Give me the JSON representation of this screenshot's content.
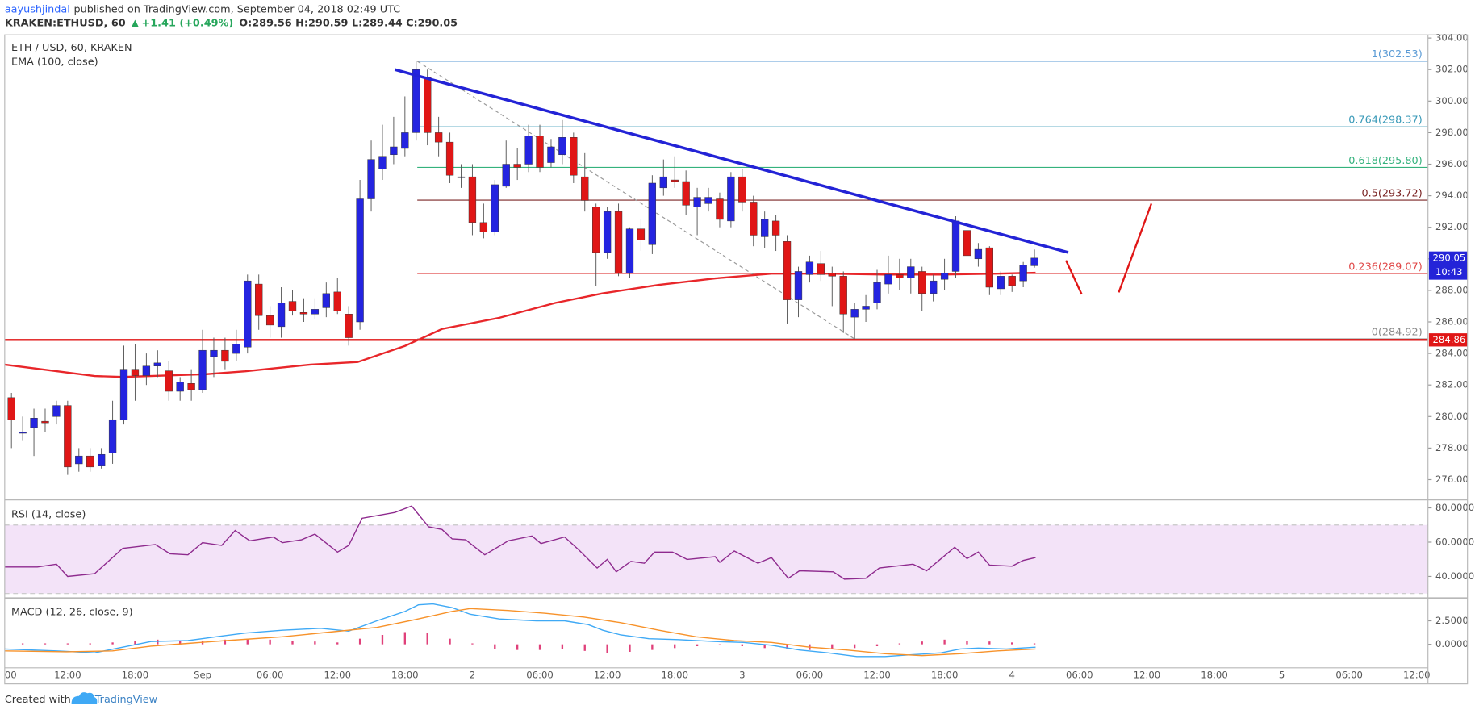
{
  "header": {
    "author": "aayushjindal",
    "published": "published on TradingView.com, September 04, 2018 02:49 UTC",
    "symbol": "KRAKEN:ETHUSD, 60",
    "change": "+1.41 (+0.49%)",
    "ohlc": "O:289.56 H:290.59 L:289.44 C:290.05"
  },
  "chart_data": [
    {
      "type": "candlestick",
      "title": "ETH / USD, 60, KRAKEN",
      "up_color": "#2424e0",
      "down_color": "#e01616",
      "grid": true,
      "x": [
        7,
        8,
        9,
        10,
        11,
        12,
        13,
        14,
        15,
        16,
        17,
        18,
        19,
        20,
        21,
        22,
        23,
        24,
        25,
        26,
        27,
        28,
        29,
        30,
        31,
        32,
        33,
        34,
        35,
        36,
        37,
        38,
        39,
        40,
        41,
        42,
        43,
        44,
        45,
        46,
        47,
        48,
        49,
        50,
        51,
        52,
        53,
        54,
        55,
        56,
        57,
        58,
        59,
        60,
        61,
        62,
        63,
        64,
        65,
        66,
        67,
        68,
        69,
        70,
        71,
        72,
        73,
        74,
        75,
        76,
        77,
        78,
        79,
        80,
        81,
        82,
        83,
        84,
        85,
        86,
        87,
        88,
        89,
        90,
        91,
        92,
        93,
        94,
        95,
        96,
        97,
        98
      ],
      "open": [
        281.2,
        279,
        279.3,
        279.7,
        280,
        280.7,
        277,
        277.5,
        276.9,
        277.7,
        279.8,
        283,
        282.6,
        283.2,
        282.9,
        281.6,
        282.1,
        281.7,
        283.8,
        284.2,
        284,
        284.4,
        288.4,
        286.4,
        285.7,
        287.3,
        286.6,
        286.5,
        286.9,
        287.9,
        286.5,
        286,
        293.8,
        295.7,
        296.6,
        297,
        298,
        301.5,
        298,
        297.4,
        295.2,
        295.2,
        292.3,
        291.7,
        294.6,
        296,
        296,
        297.8,
        296.1,
        296.6,
        297.7,
        295.2,
        293.3,
        290.4,
        293,
        289.1,
        291.9,
        290.9,
        294.5,
        295,
        294.9,
        293.3,
        293.5,
        293.8,
        292.4,
        295.2,
        293.6,
        291.4,
        292.4,
        291.1,
        287.4,
        289,
        289.7,
        289.1,
        288.9,
        286.3,
        286.8,
        287.2,
        288.4,
        289,
        288.8,
        289.2,
        287.8,
        288.7,
        289.2,
        291.8,
        290,
        290.7,
        288.1,
        288.9,
        288.6,
        289.56
      ],
      "high": [
        281.5,
        280,
        280.5,
        280.5,
        281,
        281,
        278,
        278,
        278,
        281,
        284.5,
        284.6,
        284,
        284.2,
        283.5,
        282.5,
        283,
        285.5,
        285,
        285,
        285.5,
        289,
        289,
        287,
        288.2,
        288,
        287.5,
        287.5,
        288.5,
        288.8,
        287,
        295,
        297.5,
        298.5,
        299,
        300.3,
        302.53,
        302,
        299,
        298,
        296,
        296,
        293.5,
        295,
        297.5,
        297,
        298.5,
        298.5,
        297.6,
        298.8,
        298,
        296.7,
        293.5,
        293.3,
        293.5,
        292,
        292.5,
        295.3,
        296.3,
        296.5,
        295.6,
        294.5,
        294.5,
        294.2,
        295.5,
        295.7,
        294,
        293,
        292.8,
        291.5,
        289.5,
        290.2,
        290.5,
        289.5,
        289.2,
        287.2,
        287.7,
        289.3,
        290.2,
        290,
        290,
        289.5,
        289,
        290,
        292.7,
        292,
        291,
        290.8,
        289.2,
        289,
        289.8,
        290.59
      ],
      "low": [
        278,
        278.5,
        277.5,
        279,
        279.5,
        276.3,
        276.5,
        276.5,
        276.7,
        277,
        279.5,
        281,
        282,
        282.5,
        281,
        281,
        281,
        281.5,
        282.5,
        283,
        283.5,
        284,
        285.5,
        285,
        285,
        286.4,
        286,
        286.2,
        286.3,
        286.5,
        284.5,
        285.5,
        293,
        295,
        296,
        296.5,
        297.5,
        297.2,
        296.5,
        294.8,
        294.5,
        291.5,
        291.3,
        291.5,
        294.5,
        295,
        295.5,
        295.5,
        295.8,
        296,
        294.8,
        293,
        288.3,
        290,
        288.9,
        288.8,
        290.5,
        290.3,
        294,
        294.5,
        292.8,
        291.5,
        293,
        292,
        292,
        293,
        290.8,
        290.7,
        290.5,
        285.9,
        286.3,
        288.5,
        288.6,
        287,
        285.3,
        284.92,
        286,
        286.8,
        287.8,
        288,
        287.8,
        286.7,
        287.3,
        288,
        288.8,
        289.8,
        289.5,
        287.7,
        287.7,
        287.9,
        288.2,
        289.44
      ],
      "close": [
        279.8,
        279,
        279.9,
        279.6,
        280.7,
        276.8,
        277.5,
        276.8,
        277.6,
        279.8,
        283,
        282.6,
        283.2,
        283.4,
        281.6,
        282.2,
        281.7,
        284.2,
        284.2,
        283.5,
        284.6,
        288.6,
        286.4,
        285.8,
        287.2,
        286.7,
        286.5,
        286.8,
        287.8,
        286.7,
        285,
        293.8,
        296.3,
        296.5,
        297.1,
        298,
        302,
        298,
        297.4,
        295.3,
        295.2,
        292.3,
        291.7,
        294.7,
        296,
        295.8,
        297.8,
        295.8,
        297.1,
        297.7,
        295.3,
        293.7,
        290.4,
        293,
        289.1,
        291.9,
        291.2,
        294.8,
        295.2,
        294.9,
        293.4,
        293.9,
        293.9,
        292.5,
        295.2,
        293.6,
        291.5,
        292.5,
        291.5,
        287.4,
        289.2,
        289.8,
        289,
        288.9,
        286.5,
        286.8,
        287,
        288.5,
        289,
        288.8,
        289.5,
        287.8,
        288.6,
        289.1,
        292.4,
        290.2,
        290.6,
        288.2,
        288.9,
        288.3,
        289.6,
        290.05
      ],
      "xlim": [
        6.4,
        133
      ],
      "ylim": [
        274.8,
        304.2
      ],
      "xticks": [
        {
          "value": 6,
          "label": "00"
        },
        {
          "value": 12,
          "label": "12:00"
        },
        {
          "value": 18,
          "label": "18:00"
        },
        {
          "value": 24,
          "label": "Sep"
        },
        {
          "value": 30,
          "label": "06:00"
        },
        {
          "value": 36,
          "label": "12:00"
        },
        {
          "value": 42,
          "label": "18:00"
        },
        {
          "value": 48,
          "label": "2"
        },
        {
          "value": 54,
          "label": "06:00"
        },
        {
          "value": 60,
          "label": "12:00"
        },
        {
          "value": 66,
          "label": "18:00"
        },
        {
          "value": 72,
          "label": "3"
        },
        {
          "value": 78,
          "label": "06:00"
        },
        {
          "value": 84,
          "label": "12:00"
        },
        {
          "value": 90,
          "label": "18:00"
        },
        {
          "value": 96,
          "label": "4"
        },
        {
          "value": 102,
          "label": "06:00"
        },
        {
          "value": 108,
          "label": "12:00"
        },
        {
          "value": 114,
          "label": "18:00"
        },
        {
          "value": 120,
          "label": "5"
        },
        {
          "value": 126,
          "label": "06:00"
        },
        {
          "value": 132,
          "label": "12:00"
        }
      ],
      "yticks": [
        {
          "value": 276,
          "label": "276.00"
        },
        {
          "value": 278,
          "label": "278.00"
        },
        {
          "value": 280,
          "label": "280.00"
        },
        {
          "value": 282,
          "label": "282.00"
        },
        {
          "value": 284,
          "label": "284.00"
        },
        {
          "value": 286,
          "label": "286.00"
        },
        {
          "value": 288,
          "label": "288.00"
        },
        {
          "value": 290,
          "label": "290.00"
        },
        {
          "value": 292,
          "label": "292.00"
        },
        {
          "value": 294,
          "label": "294.00"
        },
        {
          "value": 296,
          "label": "296.00"
        },
        {
          "value": 298,
          "label": "298.00"
        },
        {
          "value": 300,
          "label": "300.00"
        },
        {
          "value": 302,
          "label": "302.00"
        },
        {
          "value": 304,
          "label": "304.00"
        }
      ],
      "ema": {
        "name": "EMA (100, close)",
        "color": "#e8262a",
        "x": [
          6.4,
          14.4,
          16.9,
          24.4,
          27.8,
          33.6,
          37.8,
          42,
          45.3,
          50.4,
          55.4,
          59.6,
          64.6,
          69.6,
          74.6,
          79.6,
          84.7,
          89.7,
          94.7,
          98.1
        ],
        "values": [
          283.29,
          282.57,
          282.51,
          282.69,
          282.87,
          283.29,
          283.46,
          284.48,
          285.55,
          286.26,
          287.21,
          287.81,
          288.35,
          288.76,
          289.06,
          289.06,
          289,
          289,
          289.06,
          289.12
        ]
      },
      "fib": {
        "x": [
          43.1,
          82
        ],
        "levels": [
          {
            "price": 302.53,
            "label": "1(302.53)",
            "color": "#5b9bd5"
          },
          {
            "price": 298.37,
            "label": "0.764(298.37)",
            "color": "#3a9ab8"
          },
          {
            "price": 295.8,
            "label": "0.618(295.80)",
            "color": "#34b27d"
          },
          {
            "price": 293.72,
            "label": "0.5(293.72)",
            "color": "#7a2424"
          },
          {
            "price": 289.07,
            "label": "0.236(289.07)",
            "color": "#e04848"
          },
          {
            "price": 284.92,
            "label": "0(284.92)",
            "color": "#8a8a8a"
          }
        ]
      },
      "trendline": {
        "color": "#2323d6",
        "x": [
          41.1,
          101
        ],
        "values": [
          302,
          290.4
        ]
      },
      "support": {
        "value": 284.86,
        "color": "#e01616"
      },
      "last_price": {
        "value": 290.05,
        "color": "#2424d8",
        "countdown": "10:43"
      },
      "sketch": {
        "color": "#e01616",
        "lines": [
          {
            "x": [
              100.8,
              102.2
            ],
            "values": [
              289.9,
              287.75
            ]
          },
          {
            "x": [
              105.5,
              108.4
            ],
            "values": [
              287.87,
              293.5
            ]
          }
        ]
      }
    },
    {
      "type": "line",
      "title": "RSI (14, close)",
      "band": [
        30,
        70
      ],
      "band_color": "#f3e3f8",
      "ylim": [
        27.8,
        83.8
      ],
      "yticks": [
        {
          "value": 40,
          "label": "40.0000"
        },
        {
          "value": 60,
          "label": "60.0000"
        },
        {
          "value": 80,
          "label": "80.0000"
        }
      ],
      "series": [
        {
          "color": "#8e2a8e",
          "x": [
            6.4,
            9.3,
            11,
            12,
            14.4,
            16.9,
            19.8,
            21.1,
            22.7,
            24,
            25.7,
            26.9,
            28.2,
            30.3,
            31.1,
            32.8,
            34,
            36,
            37,
            38.2,
            41.1,
            42.6,
            44.1,
            45.3,
            46.2,
            47.4,
            49.1,
            51.2,
            53.3,
            54.1,
            56.2,
            57.5,
            59.1,
            60,
            60.8,
            62.1,
            63.3,
            64.2,
            65.8,
            67.1,
            69.6,
            70,
            71.3,
            73.4,
            74.6,
            76.1,
            77.1,
            80.1,
            81.1,
            83,
            84.2,
            87.2,
            88.4,
            90.9,
            92,
            93,
            94,
            96,
            97,
            98.1
          ],
          "values": [
            45.5,
            45.5,
            47.1,
            40,
            41.6,
            56.4,
            58.6,
            53.2,
            52.6,
            59.7,
            58.1,
            66.8,
            60.8,
            63,
            59.7,
            61.4,
            64.7,
            54.2,
            58.1,
            74,
            77.3,
            81.1,
            69,
            67.4,
            61.9,
            61.4,
            52.6,
            60.8,
            63.6,
            59.2,
            63,
            55.3,
            44.9,
            49.9,
            42.7,
            48.8,
            47.7,
            54.2,
            54.2,
            49.9,
            51.5,
            48.2,
            54.8,
            47.7,
            51,
            38.9,
            43.3,
            42.7,
            38.4,
            38.9,
            44.9,
            47.1,
            43.3,
            57,
            50.4,
            54.2,
            46.6,
            46,
            49.3,
            51
          ]
        }
      ]
    },
    {
      "type": "line",
      "title": "MACD (12, 26, close, 9)",
      "ylim": [
        -2.5,
        4.8
      ],
      "yticks": [
        {
          "value": 0,
          "label": "0.0000"
        },
        {
          "value": 2.5,
          "label": "2.5000"
        }
      ],
      "histogram": {
        "color": "#e0407a",
        "x": [
          8,
          10,
          12,
          14,
          16,
          18,
          20,
          22,
          24,
          26,
          28,
          30,
          32,
          34,
          36,
          38,
          40,
          42,
          44,
          46,
          48,
          50,
          52,
          54,
          56,
          58,
          60,
          62,
          64,
          66,
          68,
          70,
          72,
          74,
          76,
          78,
          80,
          82,
          84,
          86,
          88,
          90,
          92,
          94,
          96,
          98
        ],
        "values": [
          0.1,
          0.1,
          0.1,
          0.1,
          0.2,
          0.4,
          0.5,
          0.4,
          0.4,
          0.5,
          0.6,
          0.5,
          0.4,
          0.3,
          0.2,
          0.6,
          1,
          1.3,
          1.2,
          0.6,
          0.1,
          -0.5,
          -0.6,
          -0.6,
          -0.5,
          -0.7,
          -0.9,
          -0.8,
          -0.6,
          -0.4,
          -0.2,
          0,
          -0.2,
          -0.4,
          -0.5,
          -0.6,
          -0.5,
          -0.4,
          -0.2,
          0.1,
          0.3,
          0.5,
          0.4,
          0.3,
          0.2,
          0.1
        ]
      },
      "series": [
        {
          "color": "#3fa9f5",
          "x": [
            6.4,
            11,
            14.4,
            16.9,
            19.4,
            22.7,
            25.2,
            27.8,
            31.1,
            34.5,
            37,
            39.5,
            42,
            43.2,
            44.5,
            46.2,
            47.8,
            50.4,
            53.7,
            56.2,
            58.3,
            59.6,
            61.2,
            63.7,
            66.3,
            69.6,
            72.1,
            74.6,
            77.1,
            79.6,
            82.2,
            84.7,
            87.2,
            89.7,
            91.4,
            93,
            95.5,
            98.1
          ],
          "values": [
            -0.5,
            -0.7,
            -0.9,
            -0.3,
            0.3,
            0.4,
            0.8,
            1.2,
            1.5,
            1.7,
            1.4,
            2.5,
            3.5,
            4.2,
            4.3,
            3.9,
            3.2,
            2.7,
            2.5,
            2.5,
            2.1,
            1.5,
            1,
            0.6,
            0.5,
            0.3,
            0.2,
            -0.1,
            -0.6,
            -0.9,
            -1.3,
            -1.3,
            -1.1,
            -0.9,
            -0.5,
            -0.4,
            -0.5,
            -0.3
          ]
        },
        {
          "color": "#f7922a",
          "x": [
            6.4,
            11.9,
            16,
            19.4,
            22.7,
            26.1,
            31.1,
            35.3,
            39.5,
            42.8,
            46.2,
            47.8,
            51.2,
            54.5,
            57.9,
            61.2,
            64.6,
            67.9,
            71.3,
            74.6,
            78,
            81.3,
            84.7,
            88,
            91.4,
            94.7,
            98.1
          ],
          "values": [
            -0.7,
            -0.8,
            -0.7,
            -0.2,
            0.1,
            0.4,
            0.8,
            1.3,
            1.8,
            2.6,
            3.5,
            3.8,
            3.6,
            3.3,
            2.9,
            2.3,
            1.5,
            0.8,
            0.4,
            0.2,
            -0.3,
            -0.6,
            -1,
            -1.2,
            -1,
            -0.7,
            -0.5
          ]
        }
      ]
    }
  ],
  "footer": {
    "text": "Created with",
    "brand": "TradingView"
  }
}
